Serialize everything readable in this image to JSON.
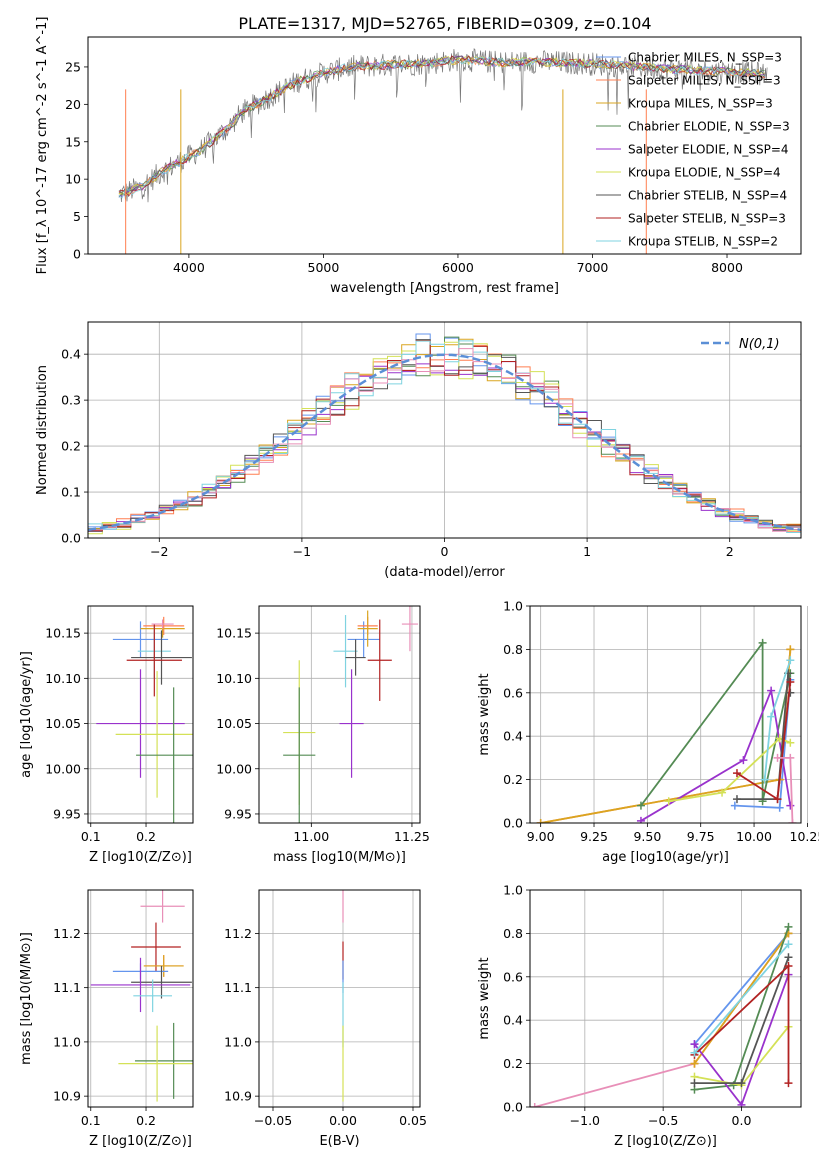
{
  "figure_title": "PLATE=1317, MJD=52765, FIBERID=0309, z=0.104",
  "chart_data": [
    {
      "id": "spectrum",
      "type": "line",
      "xlabel": "wavelength [Angstrom, rest frame]",
      "ylabel": "Flux [f_λ 10^-17 erg cm^-2 s^-1 A^-1]",
      "xlim": [
        3250,
        8550
      ],
      "ylim": [
        0,
        29
      ],
      "xticks": [
        4000,
        5000,
        6000,
        7000,
        8000
      ],
      "yticks": [
        0,
        5,
        10,
        15,
        20,
        25
      ],
      "legend": "upper right",
      "continuum": [
        [
          3500,
          8
        ],
        [
          3650,
          9
        ],
        [
          3800,
          11
        ],
        [
          3950,
          12.5
        ],
        [
          4100,
          14
        ],
        [
          4200,
          15.5
        ],
        [
          4300,
          17
        ],
        [
          4400,
          19
        ],
        [
          4600,
          21
        ],
        [
          4800,
          23
        ],
        [
          5000,
          24.2
        ],
        [
          5200,
          25
        ],
        [
          5500,
          25.3
        ],
        [
          5800,
          25.5
        ],
        [
          6000,
          26
        ],
        [
          6300,
          25.6
        ],
        [
          6600,
          25.7
        ],
        [
          6900,
          25.5
        ],
        [
          7200,
          25.2
        ],
        [
          7500,
          24.8
        ],
        [
          7800,
          24.5
        ],
        [
          8100,
          24.3
        ],
        [
          8300,
          24
        ]
      ],
      "series": [
        {
          "name": "Chabrier MILES, N_SSP=3",
          "color": "#6495ed"
        },
        {
          "name": "Salpeter MILES, N_SSP=3",
          "color": "#ff7f50"
        },
        {
          "name": "Kroupa MILES, N_SSP=3",
          "color": "#daa520"
        },
        {
          "name": "Chabrier ELODIE, N_SSP=3",
          "color": "#548b54"
        },
        {
          "name": "Salpeter ELODIE, N_SSP=4",
          "color": "#9932cc"
        },
        {
          "name": "Kroupa ELODIE, N_SSP=4",
          "color": "#d4e157"
        },
        {
          "name": "Chabrier STELIB, N_SSP=4",
          "color": "#555555"
        },
        {
          "name": "Salpeter STELIB, N_SSP=3",
          "color": "#b22222"
        },
        {
          "name": "Kroupa STELIB, N_SSP=2",
          "color": "#7fd3e0"
        }
      ]
    },
    {
      "id": "residuals",
      "type": "line",
      "xlabel": "(data-model)/error",
      "ylabel": "Normed distribution",
      "xlim": [
        -2.5,
        2.5
      ],
      "ylim": [
        0,
        0.47
      ],
      "xticks": [
        -2,
        -1,
        0,
        1,
        2
      ],
      "yticks": [
        0.0,
        0.1,
        0.2,
        0.3,
        0.4
      ],
      "grid": true,
      "legend": "upper right",
      "gaussian_label": "N(0,1)",
      "gaussian_color": "#5b8fd6",
      "bin_width": 0.1,
      "histogram_colors": [
        "#6495ed",
        "#ff7f50",
        "#daa520",
        "#548b54",
        "#9932cc",
        "#d4e157",
        "#555555",
        "#b22222",
        "#7fd3e0",
        "#e88fb8"
      ]
    },
    {
      "id": "age_vs_Z",
      "type": "scatter",
      "xlabel": "Z [log10(Z/Z⊙)]",
      "ylabel": "age  [log10(age/yr)]",
      "xlim": [
        0.095,
        0.285
      ],
      "ylim": [
        9.94,
        10.18
      ],
      "xticks": [
        0.1,
        0.2
      ],
      "yticks": [
        9.95,
        10.0,
        10.05,
        10.1,
        10.15
      ],
      "grid": true,
      "points": [
        {
          "color": "#6495ed",
          "x": 0.19,
          "y": 10.143,
          "xerr": 0.05,
          "yerr": 0.02
        },
        {
          "color": "#ff7f50",
          "x": 0.232,
          "y": 10.158,
          "xerr": 0.037,
          "yerr": 0.01
        },
        {
          "color": "#daa520",
          "x": 0.23,
          "y": 10.155,
          "xerr": 0.04,
          "yerr": 0.01
        },
        {
          "color": "#7fd3e0",
          "x": 0.215,
          "y": 10.13,
          "xerr": 0.03,
          "yerr": 0.03
        },
        {
          "color": "#555555",
          "x": 0.228,
          "y": 10.123,
          "xerr": 0.055,
          "yerr": 0.03
        },
        {
          "color": "#b22222",
          "x": 0.215,
          "y": 10.12,
          "xerr": 0.05,
          "yerr": 0.04
        },
        {
          "color": "#e88fb8",
          "x": 0.23,
          "y": 10.16,
          "xerr": 0.02,
          "yerr": 0.005
        },
        {
          "color": "#9932cc",
          "x": 0.19,
          "y": 10.05,
          "xerr": 0.08,
          "yerr": 0.06
        },
        {
          "color": "#d4e157",
          "x": 0.22,
          "y": 10.038,
          "xerr": 0.075,
          "yerr": 0.07
        },
        {
          "color": "#548b54",
          "x": 0.25,
          "y": 10.015,
          "xerr": 0.068,
          "yerr": 0.075
        }
      ]
    },
    {
      "id": "age_vs_mass",
      "type": "scatter",
      "xlabel": "mass [log10(M/M⊙)]",
      "ylabel": "",
      "xlim": [
        10.87,
        11.27
      ],
      "ylim": [
        9.94,
        10.18
      ],
      "xticks": [
        11.0,
        11.25
      ],
      "yticks": [
        9.95,
        10.0,
        10.05,
        10.1,
        10.15
      ],
      "grid": true,
      "points": [
        {
          "color": "#6495ed",
          "x": 11.13,
          "y": 10.143,
          "xerr": 0.04,
          "yerr": 0.02
        },
        {
          "color": "#ff7f50",
          "x": 11.14,
          "y": 10.158,
          "xerr": 0.025,
          "yerr": 0.01
        },
        {
          "color": "#daa520",
          "x": 11.14,
          "y": 10.155,
          "xerr": 0.025,
          "yerr": 0.02
        },
        {
          "color": "#7fd3e0",
          "x": 11.085,
          "y": 10.13,
          "xerr": 0.03,
          "yerr": 0.04
        },
        {
          "color": "#555555",
          "x": 11.11,
          "y": 10.123,
          "xerr": 0.025,
          "yerr": 0.02
        },
        {
          "color": "#b22222",
          "x": 11.17,
          "y": 10.12,
          "xerr": 0.03,
          "yerr": 0.045
        },
        {
          "color": "#e88fb8",
          "x": 11.245,
          "y": 10.16,
          "xerr": 0.02,
          "yerr": 0.03
        },
        {
          "color": "#9932cc",
          "x": 11.1,
          "y": 10.05,
          "xerr": 0.03,
          "yerr": 0.06
        },
        {
          "color": "#d4e157",
          "x": 10.97,
          "y": 10.04,
          "xerr": 0.04,
          "yerr": 0.08
        },
        {
          "color": "#548b54",
          "x": 10.97,
          "y": 10.015,
          "xerr": 0.04,
          "yerr": 0.075
        }
      ]
    },
    {
      "id": "weight_vs_age",
      "type": "line",
      "xlabel": "age  [log10(age/yr)]",
      "ylabel": "mass weight",
      "xlim": [
        8.95,
        10.22
      ],
      "ylim": [
        0,
        1.0
      ],
      "xticks": [
        9.0,
        9.25,
        9.5,
        9.75,
        10.0,
        10.25
      ],
      "yticks": [
        0.0,
        0.2,
        0.4,
        0.6,
        0.8,
        1.0
      ],
      "grid": true,
      "series": [
        {
          "color": "#6495ed",
          "points": [
            [
              9.91,
              0.08
            ],
            [
              10.12,
              0.07
            ],
            [
              10.17,
              0.66
            ]
          ]
        },
        {
          "color": "#ff7f50",
          "points": [
            [
              9.0,
              0.0
            ],
            [
              10.12,
              0.2
            ],
            [
              10.17,
              0.8
            ]
          ]
        },
        {
          "color": "#daa520",
          "points": [
            [
              9.0,
              0.0
            ],
            [
              10.12,
              0.2
            ],
            [
              10.17,
              0.8
            ]
          ]
        },
        {
          "color": "#548b54",
          "points": [
            [
              9.47,
              0.08
            ],
            [
              10.04,
              0.83
            ],
            [
              10.04,
              0.1
            ],
            [
              10.17,
              0.69
            ]
          ]
        },
        {
          "color": "#9932cc",
          "points": [
            [
              9.47,
              0.01
            ],
            [
              9.95,
              0.29
            ],
            [
              10.08,
              0.61
            ],
            [
              10.17,
              0.08
            ]
          ]
        },
        {
          "color": "#d4e157",
          "points": [
            [
              9.6,
              0.1
            ],
            [
              9.85,
              0.14
            ],
            [
              10.12,
              0.39
            ],
            [
              10.17,
              0.37
            ]
          ]
        },
        {
          "color": "#555555",
          "points": [
            [
              9.92,
              0.11
            ],
            [
              10.11,
              0.11
            ],
            [
              10.16,
              0.69
            ],
            [
              10.17,
              0.6
            ]
          ]
        },
        {
          "color": "#b22222",
          "points": [
            [
              9.92,
              0.23
            ],
            [
              10.11,
              0.11
            ],
            [
              10.17,
              0.65
            ]
          ]
        },
        {
          "color": "#7fd3e0",
          "points": [
            [
              10.05,
              0.2
            ],
            [
              10.08,
              0.49
            ],
            [
              10.17,
              0.75
            ]
          ]
        },
        {
          "color": "#e88fb8",
          "points": [
            [
              10.11,
              0.3
            ],
            [
              10.17,
              0.3
            ],
            [
              10.18,
              0.0
            ]
          ]
        }
      ]
    },
    {
      "id": "mass_vs_Z",
      "type": "scatter",
      "xlabel": "Z [log10(Z/Z⊙)]",
      "ylabel": "mass [log10(M/M⊙)]",
      "xlim": [
        0.095,
        0.285
      ],
      "ylim": [
        10.88,
        11.28
      ],
      "xticks": [
        0.1,
        0.2
      ],
      "yticks": [
        10.9,
        11.0,
        11.1,
        11.2
      ],
      "grid": true,
      "points": [
        {
          "color": "#e88fb8",
          "x": 0.23,
          "y": 11.25,
          "xerr": 0.04,
          "yerr": 0.03
        },
        {
          "color": "#b22222",
          "x": 0.218,
          "y": 11.175,
          "xerr": 0.045,
          "yerr": 0.045
        },
        {
          "color": "#ff7f50",
          "x": 0.232,
          "y": 11.14,
          "xerr": 0.036,
          "yerr": 0.02
        },
        {
          "color": "#daa520",
          "x": 0.232,
          "y": 11.14,
          "xerr": 0.036,
          "yerr": 0.02
        },
        {
          "color": "#6495ed",
          "x": 0.19,
          "y": 11.13,
          "xerr": 0.05,
          "yerr": 0.015
        },
        {
          "color": "#555555",
          "x": 0.228,
          "y": 11.11,
          "xerr": 0.055,
          "yerr": 0.03
        },
        {
          "color": "#9932cc",
          "x": 0.19,
          "y": 11.105,
          "xerr": 0.09,
          "yerr": 0.05
        },
        {
          "color": "#7fd3e0",
          "x": 0.212,
          "y": 11.085,
          "xerr": 0.035,
          "yerr": 0.03
        },
        {
          "color": "#548b54",
          "x": 0.25,
          "y": 10.965,
          "xerr": 0.07,
          "yerr": 0.07
        },
        {
          "color": "#d4e157",
          "x": 0.22,
          "y": 10.96,
          "xerr": 0.07,
          "yerr": 0.07
        }
      ]
    },
    {
      "id": "mass_vs_ebv",
      "type": "scatter",
      "xlabel": "E(B-V)",
      "ylabel": "",
      "xlim": [
        -0.06,
        0.055
      ],
      "ylim": [
        10.88,
        11.28
      ],
      "xticks": [
        -0.05,
        0.0,
        0.05
      ],
      "yticks": [
        10.9,
        11.0,
        11.1,
        11.2
      ],
      "grid": true,
      "points": [
        {
          "color": "#e88fb8",
          "x": 0.0,
          "y": 11.25,
          "xerr": 0,
          "yerr": 0.03
        },
        {
          "color": "#b22222",
          "x": 0.0,
          "y": 11.15,
          "xerr": 0,
          "yerr": 0.035
        },
        {
          "color": "#6495ed",
          "x": 0.0,
          "y": 11.12,
          "xerr": 0,
          "yerr": 0.03
        },
        {
          "color": "#7fd3e0",
          "x": 0.0,
          "y": 11.05,
          "xerr": 0,
          "yerr": 0.06
        },
        {
          "color": "#d4e157",
          "x": 0.0,
          "y": 10.96,
          "xerr": 0,
          "yerr": 0.07
        }
      ]
    },
    {
      "id": "weight_vs_Z",
      "type": "line",
      "xlabel": "Z [log10(Z/Z⊙)]",
      "ylabel": "mass weight",
      "xlim": [
        -1.35,
        0.38
      ],
      "ylim": [
        0,
        1.0
      ],
      "xticks": [
        -1.0,
        -0.5,
        0.0
      ],
      "yticks": [
        0.0,
        0.2,
        0.4,
        0.6,
        0.8,
        1.0
      ],
      "grid": true,
      "series": [
        {
          "color": "#e88fb8",
          "points": [
            [
              -1.32,
              0.0
            ],
            [
              -0.3,
              0.2
            ]
          ]
        },
        {
          "color": "#6495ed",
          "points": [
            [
              -0.3,
              0.29
            ],
            [
              0.3,
              0.8
            ]
          ]
        },
        {
          "color": "#ff7f50",
          "points": [
            [
              -0.3,
              0.2
            ],
            [
              0.3,
              0.8
            ]
          ]
        },
        {
          "color": "#daa520",
          "points": [
            [
              -0.3,
              0.2
            ],
            [
              0.3,
              0.8
            ]
          ]
        },
        {
          "color": "#548b54",
          "points": [
            [
              -0.3,
              0.08
            ],
            [
              -0.05,
              0.1
            ],
            [
              0.3,
              0.83
            ]
          ]
        },
        {
          "color": "#9932cc",
          "points": [
            [
              -0.3,
              0.29
            ],
            [
              0.0,
              0.01
            ],
            [
              0.3,
              0.61
            ]
          ]
        },
        {
          "color": "#d4e157",
          "points": [
            [
              -0.3,
              0.14
            ],
            [
              0.0,
              0.1
            ],
            [
              0.3,
              0.37
            ]
          ]
        },
        {
          "color": "#555555",
          "points": [
            [
              -0.3,
              0.11
            ],
            [
              0.0,
              0.11
            ],
            [
              0.3,
              0.69
            ]
          ]
        },
        {
          "color": "#b22222",
          "points": [
            [
              -0.3,
              0.24
            ],
            [
              0.3,
              0.65
            ],
            [
              0.3,
              0.11
            ]
          ]
        },
        {
          "color": "#7fd3e0",
          "points": [
            [
              -0.3,
              0.25
            ],
            [
              0.3,
              0.75
            ]
          ]
        }
      ]
    }
  ]
}
